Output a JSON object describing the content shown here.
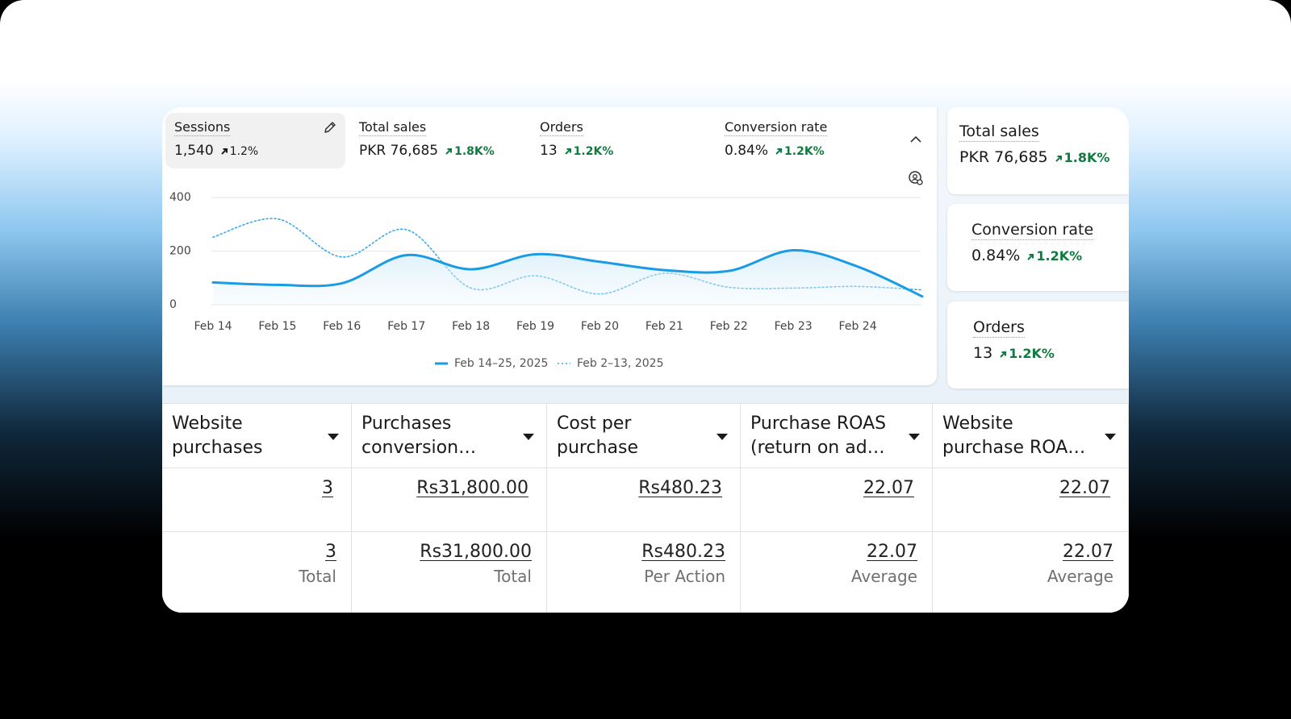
{
  "metrics": [
    {
      "label": "Sessions",
      "value": "1,540",
      "change": "1.2%",
      "selected": true
    },
    {
      "label": "Total sales",
      "value": "PKR 76,685",
      "change": "1.8K%"
    },
    {
      "label": "Orders",
      "value": "13",
      "change": "1.2K%"
    },
    {
      "label": "Conversion rate",
      "value": "0.84%",
      "change": "1.2K%"
    }
  ],
  "chart_data": {
    "type": "line",
    "categories": [
      "Feb 14",
      "Feb 15",
      "Feb 16",
      "Feb 17",
      "Feb 18",
      "Feb 19",
      "Feb 20",
      "Feb 21",
      "Feb 22",
      "Feb 23",
      "Feb 24",
      null
    ],
    "series": [
      {
        "name": "Feb 14–25, 2025",
        "color": "#1a9be3",
        "style": "solid",
        "values": [
          83,
          74,
          80,
          185,
          132,
          188,
          160,
          129,
          126,
          203,
          142,
          31
        ]
      },
      {
        "name": "Feb 2–13, 2025",
        "color": "#3ba9e8",
        "style": "dotted",
        "values": [
          252,
          320,
          178,
          280,
          62,
          108,
          40,
          117,
          65,
          62,
          68,
          55
        ]
      }
    ],
    "ylim": [
      0,
      400
    ],
    "yticks": [
      0,
      200,
      400
    ],
    "grid": true
  },
  "side_cards": [
    {
      "label": "Total sales",
      "value": "PKR 76,685",
      "change": "1.8K%"
    },
    {
      "label": "Conversion rate",
      "value": "0.84%",
      "change": "1.2K%"
    },
    {
      "label": "Orders",
      "value": "13",
      "change": "1.2K%"
    }
  ],
  "table": {
    "headers": [
      [
        "Website",
        "purchases"
      ],
      [
        "Purchases",
        "conversion…"
      ],
      [
        "Cost per",
        "purchase"
      ],
      [
        "Purchase ROAS",
        "(return on ad…"
      ],
      [
        "Website",
        "purchase ROA…"
      ]
    ],
    "rows": [
      [
        "3",
        "Rs31,800.00",
        "Rs480.23",
        "22.07",
        "22.07"
      ]
    ],
    "summary": [
      {
        "value": "3",
        "label": "Total"
      },
      {
        "value": "Rs31,800.00",
        "label": "Total"
      },
      {
        "value": "Rs480.23",
        "label": "Per Action"
      },
      {
        "value": "22.07",
        "label": "Average"
      },
      {
        "value": "22.07",
        "label": "Average"
      }
    ]
  }
}
